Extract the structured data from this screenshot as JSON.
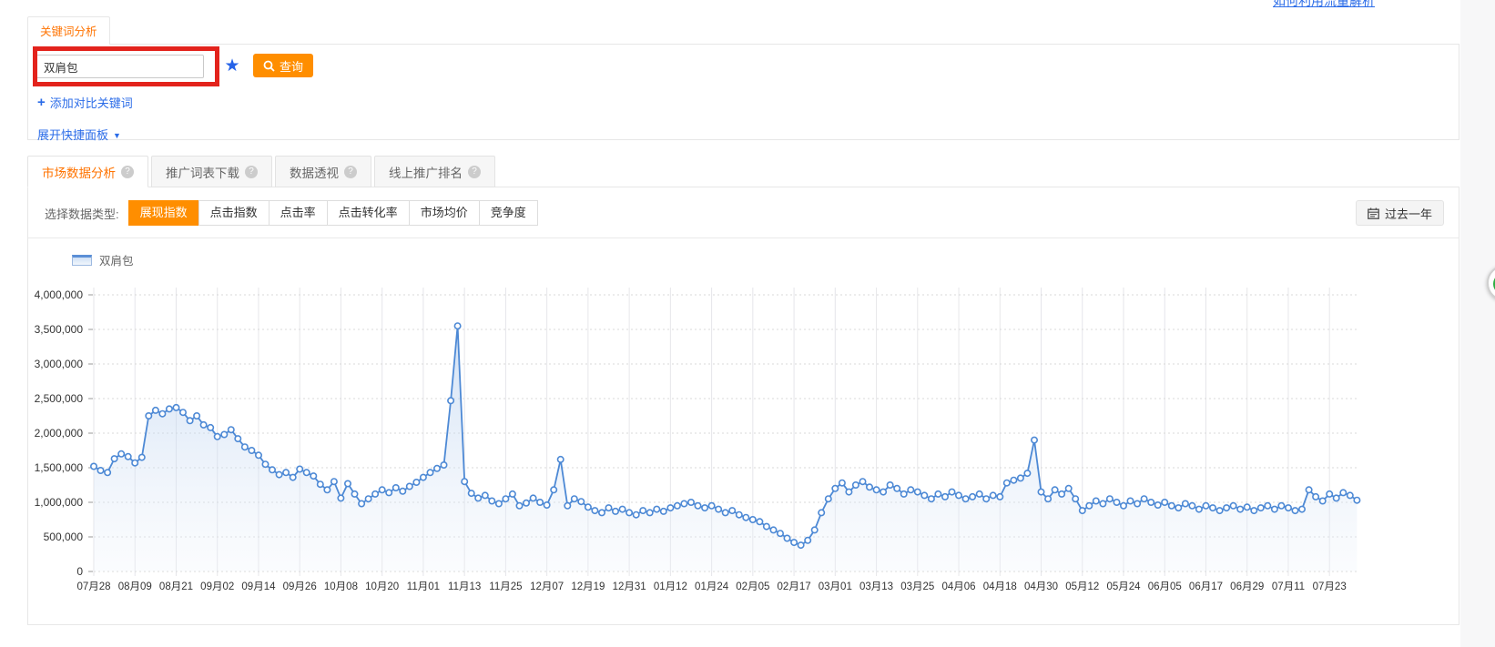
{
  "page": {
    "top_right_link": "如何利用流量解析",
    "keyword_tab": "关键词分析",
    "search": {
      "value": "双肩包",
      "query_button": "查询"
    },
    "add_compare_link": "添加对比关键词",
    "expand_panel_link": "展开快捷面板"
  },
  "icons": {
    "help": "?",
    "star": "★",
    "caret_down": "▼",
    "plus": "+"
  },
  "market": {
    "tabs": [
      {
        "label": "市场数据分析",
        "active": true
      },
      {
        "label": "推广词表下载",
        "active": false
      },
      {
        "label": "数据透视",
        "active": false
      },
      {
        "label": "线上推广排名",
        "active": false
      }
    ]
  },
  "toolbar": {
    "label": "选择数据类型:",
    "options": [
      "展现指数",
      "点击指数",
      "点击率",
      "点击转化率",
      "市场均价",
      "竞争度"
    ],
    "active_option": "展现指数",
    "date_range_button": "过去一年"
  },
  "colors": {
    "accent_orange": "#ff8e00",
    "link_blue": "#2b6ce8",
    "line_blue": "#4d89d5",
    "annotation_red": "#e3231c"
  },
  "chart_data": {
    "type": "line",
    "title": "",
    "legend": "双肩包",
    "ylabel": "",
    "xlabel": "",
    "ylim": [
      0,
      4000000
    ],
    "grid": true,
    "legend_position": "top-left",
    "y_tick_labels": [
      "0",
      "500,000",
      "1,000,000",
      "1,500,000",
      "2,000,000",
      "2,500,000",
      "3,000,000",
      "3,500,000",
      "4,000,000"
    ],
    "x_tick_labels": [
      "07月28",
      "08月09",
      "08月21",
      "09月02",
      "09月14",
      "09月26",
      "10月08",
      "10月20",
      "11月01",
      "11月13",
      "11月25",
      "12月07",
      "12月19",
      "12月31",
      "01月12",
      "01月24",
      "02月05",
      "02月17",
      "03月01",
      "03月13",
      "03月25",
      "04月06",
      "04月18",
      "04月30",
      "05月12",
      "05月24",
      "06月05",
      "06月17",
      "06月29",
      "07月11",
      "07月23"
    ],
    "points_per_tick": 6,
    "series": [
      {
        "name": "双肩包",
        "values": [
          1520000,
          1460000,
          1430000,
          1630000,
          1700000,
          1660000,
          1570000,
          1650000,
          2250000,
          2330000,
          2280000,
          2350000,
          2370000,
          2300000,
          2180000,
          2250000,
          2120000,
          2080000,
          1950000,
          1980000,
          2050000,
          1920000,
          1800000,
          1750000,
          1680000,
          1550000,
          1470000,
          1400000,
          1430000,
          1360000,
          1480000,
          1430000,
          1380000,
          1260000,
          1180000,
          1300000,
          1060000,
          1270000,
          1120000,
          980000,
          1050000,
          1120000,
          1180000,
          1140000,
          1210000,
          1160000,
          1230000,
          1290000,
          1360000,
          1430000,
          1490000,
          1540000,
          2470000,
          3550000,
          1300000,
          1130000,
          1060000,
          1100000,
          1020000,
          980000,
          1050000,
          1120000,
          950000,
          990000,
          1060000,
          1000000,
          960000,
          1180000,
          1620000,
          950000,
          1050000,
          1010000,
          930000,
          880000,
          850000,
          920000,
          870000,
          900000,
          850000,
          820000,
          880000,
          850000,
          900000,
          870000,
          920000,
          950000,
          980000,
          1000000,
          950000,
          920000,
          950000,
          900000,
          850000,
          880000,
          820000,
          780000,
          750000,
          720000,
          650000,
          600000,
          550000,
          480000,
          420000,
          380000,
          450000,
          600000,
          850000,
          1050000,
          1200000,
          1280000,
          1150000,
          1250000,
          1300000,
          1220000,
          1180000,
          1150000,
          1250000,
          1200000,
          1120000,
          1180000,
          1150000,
          1100000,
          1050000,
          1120000,
          1080000,
          1150000,
          1100000,
          1050000,
          1080000,
          1120000,
          1050000,
          1100000,
          1080000,
          1280000,
          1320000,
          1350000,
          1420000,
          1900000,
          1150000,
          1050000,
          1180000,
          1120000,
          1200000,
          1050000,
          880000,
          950000,
          1020000,
          980000,
          1050000,
          1000000,
          950000,
          1020000,
          980000,
          1050000,
          1000000,
          960000,
          1000000,
          950000,
          920000,
          980000,
          950000,
          900000,
          950000,
          920000,
          880000,
          920000,
          950000,
          900000,
          930000,
          880000,
          920000,
          950000,
          900000,
          950000,
          920000,
          880000,
          900000,
          1180000,
          1080000,
          1020000,
          1120000,
          1060000,
          1140000,
          1100000,
          1030000
        ]
      }
    ]
  }
}
